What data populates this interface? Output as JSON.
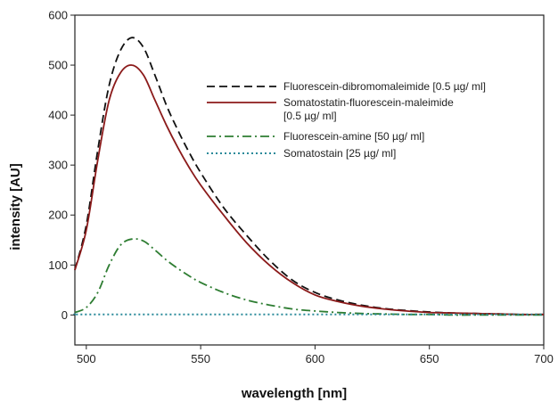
{
  "chart_data": {
    "type": "line",
    "xlabel": "wavelength [nm]",
    "ylabel": "intensity [AU]",
    "xlim": [
      495,
      700
    ],
    "ylim": [
      -60,
      600
    ],
    "xticks": [
      500,
      550,
      600,
      650,
      700
    ],
    "yticks": [
      0,
      100,
      200,
      300,
      400,
      500,
      600
    ],
    "grid": false,
    "legend_position": "top-right",
    "series": [
      {
        "name": "Fluorescein-dibromomaleimide [0.5 µg/ ml]",
        "style": "dashed",
        "color": "#111111",
        "x": [
          495,
          500,
          505,
          510,
          515,
          520,
          525,
          530,
          535,
          540,
          545,
          550,
          560,
          570,
          580,
          590,
          600,
          610,
          620,
          630,
          640,
          650,
          660,
          670,
          680,
          690,
          700
        ],
        "y": [
          90,
          180,
          330,
          460,
          530,
          555,
          535,
          480,
          420,
          370,
          325,
          285,
          215,
          160,
          110,
          70,
          45,
          30,
          20,
          13,
          9,
          6,
          4,
          3,
          2,
          1,
          1
        ]
      },
      {
        "name": "Somatostatin-fluorescein-maleimide [0.5 µg/ ml]",
        "style": "solid",
        "color": "#8b1a1a",
        "x": [
          495,
          500,
          505,
          510,
          515,
          520,
          525,
          530,
          535,
          540,
          545,
          550,
          560,
          570,
          580,
          590,
          600,
          610,
          620,
          630,
          640,
          650,
          660,
          670,
          680,
          690,
          700
        ],
        "y": [
          90,
          170,
          310,
          430,
          485,
          500,
          480,
          430,
          380,
          335,
          295,
          260,
          200,
          145,
          100,
          65,
          40,
          27,
          18,
          12,
          8,
          5,
          4,
          3,
          2,
          1,
          1
        ]
      },
      {
        "name": "Fluorescein-amine [50 µg/ ml]",
        "style": "dashdot",
        "color": "#2e7d32",
        "x": [
          495,
          500,
          505,
          510,
          515,
          520,
          525,
          530,
          535,
          540,
          545,
          550,
          560,
          570,
          580,
          590,
          600,
          610,
          620,
          630,
          640,
          650,
          660,
          670,
          680,
          690,
          700
        ],
        "y": [
          5,
          15,
          45,
          100,
          140,
          152,
          148,
          130,
          110,
          93,
          78,
          65,
          45,
          30,
          20,
          12,
          8,
          5,
          3,
          2,
          1,
          1,
          0,
          0,
          0,
          0,
          0
        ]
      },
      {
        "name": "Somatostain [25 µg/ ml]",
        "style": "dotted",
        "color": "#2a8a9a",
        "x": [
          495,
          500,
          550,
          600,
          650,
          700
        ],
        "y": [
          1,
          1,
          1,
          1,
          1,
          1
        ]
      }
    ]
  }
}
